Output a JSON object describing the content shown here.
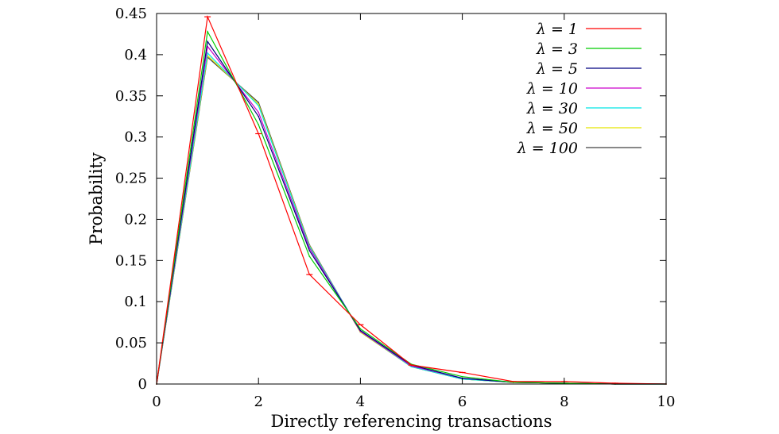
{
  "chart_data": {
    "type": "line",
    "xlabel": "Directly referencing transactions",
    "ylabel": "Probability",
    "xlim": [
      0,
      10
    ],
    "ylim": [
      0,
      0.45
    ],
    "x_ticks": [
      "0",
      "2",
      "4",
      "6",
      "8",
      "10"
    ],
    "y_ticks": [
      "0",
      "0.05",
      "0.1",
      "0.15",
      "0.2",
      "0.25",
      "0.3",
      "0.35",
      "0.4",
      "0.45"
    ],
    "grid": false,
    "legend_position": "top-right",
    "x": [
      0,
      1,
      2,
      3,
      4,
      5,
      6,
      7,
      8,
      9,
      10
    ],
    "series": [
      {
        "name": "λ = 1",
        "color": "#ff0000",
        "error_bars": true,
        "values": [
          0,
          0.446,
          0.304,
          0.133,
          0.072,
          0.023,
          0.014,
          0.003,
          0.003,
          0.001,
          0
        ]
      },
      {
        "name": "λ = 3",
        "color": "#00cc00",
        "values": [
          0,
          0.428,
          0.315,
          0.155,
          0.067,
          0.024,
          0.009,
          0.002,
          0.001,
          0,
          0
        ]
      },
      {
        "name": "λ = 5",
        "color": "#000080",
        "values": [
          0,
          0.416,
          0.325,
          0.162,
          0.065,
          0.023,
          0.007,
          0.002,
          0.001,
          0,
          0
        ]
      },
      {
        "name": "λ = 10",
        "color": "#cc00cc",
        "values": [
          0,
          0.41,
          0.33,
          0.165,
          0.064,
          0.022,
          0.007,
          0.002,
          0.001,
          0,
          0
        ]
      },
      {
        "name": "λ = 30",
        "color": "#00e5e5",
        "values": [
          0,
          0.402,
          0.338,
          0.167,
          0.064,
          0.021,
          0.006,
          0.002,
          0.001,
          0,
          0
        ]
      },
      {
        "name": "λ = 50",
        "color": "#e5e500",
        "values": [
          0,
          0.399,
          0.34,
          0.168,
          0.063,
          0.021,
          0.006,
          0.002,
          0.001,
          0,
          0
        ]
      },
      {
        "name": "λ = 100",
        "color": "#404040",
        "values": [
          0,
          0.397,
          0.342,
          0.169,
          0.063,
          0.021,
          0.006,
          0.002,
          0.001,
          0,
          0
        ]
      }
    ]
  }
}
